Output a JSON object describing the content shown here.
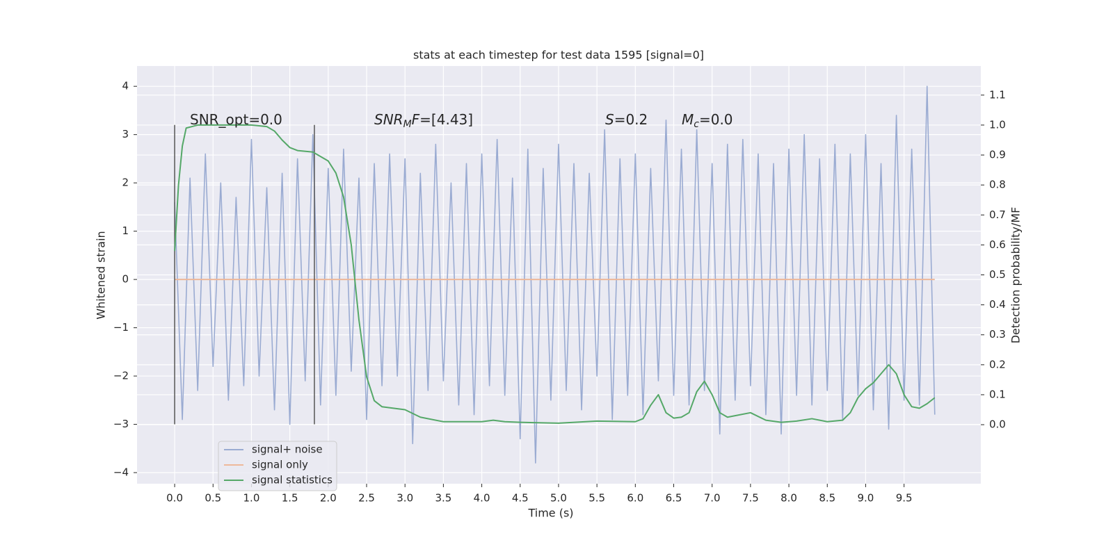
{
  "chart_data": {
    "type": "line",
    "title": "stats at each timestep for test data 1595 [signal=0]",
    "xlabel": "Time (s)",
    "ylabel": "Whitened strain",
    "y2label": "Detection probability/MF",
    "xlim": [
      -0.49,
      10.5
    ],
    "ylim": [
      -4.23,
      4.42
    ],
    "y2lim": [
      -0.197,
      1.197
    ],
    "xticks": [
      {
        "value": 0,
        "label": "0.0"
      },
      0.5,
      {
        "value": 1,
        "label": "1.0"
      },
      1.5,
      {
        "value": 2,
        "label": "2.0"
      },
      2.5,
      {
        "value": 3,
        "label": "3.0"
      },
      3.5,
      {
        "value": 4,
        "label": "4.0"
      },
      4.5,
      {
        "value": 5,
        "label": "5.0"
      },
      5.5,
      {
        "value": 6,
        "label": "6.0"
      },
      6.5,
      {
        "value": 7,
        "label": "7.0"
      },
      7.5,
      {
        "value": 8,
        "label": "8.0"
      },
      8.5,
      {
        "value": 9,
        "label": "9.0"
      },
      9.5
    ],
    "yticks": [
      {
        "value": -4,
        "label": "−4"
      },
      {
        "value": -3,
        "label": "−3"
      },
      {
        "value": -2,
        "label": "−2"
      },
      {
        "value": -1,
        "label": "−1"
      },
      0,
      1,
      2,
      3,
      4
    ],
    "y2ticks": [
      {
        "value": 0,
        "label": "0.0"
      },
      0.1,
      0.2,
      0.3,
      0.4,
      0.5,
      0.6,
      0.7,
      0.8,
      0.9,
      {
        "value": 1,
        "label": "1.0"
      },
      1.1
    ],
    "grid": true,
    "legend": "lower left",
    "series": [
      {
        "name": "signal+ noise",
        "color": "#9aabd2",
        "x": [
          0,
          0.1,
          0.2,
          0.3,
          0.4,
          0.5,
          0.6,
          0.7,
          0.8,
          0.9,
          1,
          1.1,
          1.2,
          1.3,
          1.4,
          1.5,
          1.6,
          1.7,
          1.8,
          1.9,
          2,
          2.1,
          2.2,
          2.3,
          2.4,
          2.5,
          2.6,
          2.7,
          2.8,
          2.9,
          3,
          3.1,
          3.2,
          3.3,
          3.4,
          3.5,
          3.6,
          3.7,
          3.8,
          3.9,
          4,
          4.1,
          4.2,
          4.3,
          4.4,
          4.5,
          4.6,
          4.7,
          4.8,
          4.9,
          5,
          5.1,
          5.2,
          5.3,
          5.4,
          5.5,
          5.6,
          5.7,
          5.8,
          5.9,
          6,
          6.1,
          6.2,
          6.3,
          6.4,
          6.5,
          6.6,
          6.7,
          6.8,
          6.9,
          7,
          7.1,
          7.2,
          7.3,
          7.4,
          7.5,
          7.6,
          7.7,
          7.8,
          7.9,
          8,
          8.1,
          8.2,
          8.3,
          8.4,
          8.5,
          8.6,
          8.7,
          8.8,
          8.9,
          9,
          9.1,
          9.2,
          9.3,
          9.4,
          9.5,
          9.6,
          9.7,
          9.8,
          9.9
        ],
        "values": [
          1.6,
          -2.9,
          2.1,
          -2.3,
          2.6,
          -1.8,
          2.0,
          -2.5,
          1.7,
          -2.2,
          2.9,
          -2.0,
          1.9,
          -2.7,
          2.2,
          -3.0,
          2.5,
          -2.1,
          3.0,
          -2.6,
          2.3,
          -2.4,
          2.7,
          -1.9,
          2.1,
          -2.9,
          2.4,
          -2.2,
          2.6,
          -2.0,
          2.5,
          -3.4,
          2.2,
          -2.3,
          2.8,
          -2.1,
          2.0,
          -2.6,
          2.4,
          -2.8,
          2.6,
          -2.2,
          2.9,
          -2.4,
          2.1,
          -3.3,
          2.7,
          -3.8,
          2.3,
          -2.5,
          2.8,
          -2.3,
          2.4,
          -2.7,
          2.2,
          -2.0,
          3.1,
          -2.9,
          2.5,
          -2.4,
          2.6,
          -2.8,
          2.3,
          -2.1,
          3.3,
          -2.4,
          2.7,
          -2.6,
          3.1,
          -2.3,
          2.4,
          -3.2,
          2.8,
          -2.5,
          2.9,
          -2.2,
          2.6,
          -2.8,
          2.4,
          -3.2,
          2.7,
          -2.4,
          3.0,
          -2.6,
          2.5,
          -2.3,
          2.8,
          -2.9,
          2.6,
          -2.4,
          3.0,
          -2.7,
          2.4,
          -3.1,
          3.4,
          -2.5,
          2.7,
          -2.6,
          4.0,
          -2.8
        ]
      },
      {
        "name": "signal only",
        "color": "#eeb89a",
        "x": [
          0,
          9.9
        ],
        "values": [
          0,
          0
        ]
      },
      {
        "name": "signal statistics",
        "color": "#55a868",
        "axis": "y2",
        "x": [
          0,
          0.05,
          0.1,
          0.15,
          0.3,
          0.5,
          1.0,
          1.2,
          1.3,
          1.4,
          1.5,
          1.6,
          1.8,
          2.0,
          2.1,
          2.2,
          2.3,
          2.4,
          2.5,
          2.6,
          2.7,
          3.0,
          3.2,
          3.5,
          4.0,
          4.15,
          4.3,
          4.5,
          5.0,
          5.5,
          6.0,
          6.1,
          6.2,
          6.3,
          6.4,
          6.5,
          6.6,
          6.7,
          6.8,
          6.9,
          7.0,
          7.1,
          7.2,
          7.3,
          7.5,
          7.7,
          7.9,
          8.1,
          8.3,
          8.5,
          8.7,
          8.8,
          8.9,
          9.0,
          9.1,
          9.2,
          9.3,
          9.4,
          9.5,
          9.6,
          9.7,
          9.8,
          9.9
        ],
        "values": [
          0.58,
          0.8,
          0.93,
          0.99,
          1.0,
          1.0,
          1.0,
          0.995,
          0.98,
          0.95,
          0.925,
          0.915,
          0.91,
          0.88,
          0.84,
          0.76,
          0.6,
          0.35,
          0.16,
          0.08,
          0.06,
          0.05,
          0.025,
          0.01,
          0.01,
          0.015,
          0.01,
          0.008,
          0.005,
          0.012,
          0.01,
          0.02,
          0.065,
          0.1,
          0.04,
          0.022,
          0.025,
          0.04,
          0.11,
          0.145,
          0.1,
          0.04,
          0.025,
          0.03,
          0.04,
          0.015,
          0.008,
          0.012,
          0.02,
          0.01,
          0.015,
          0.04,
          0.09,
          0.12,
          0.14,
          0.17,
          0.2,
          0.17,
          0.1,
          0.06,
          0.055,
          0.07,
          0.09
        ]
      }
    ],
    "vlines": [
      0,
      1.82
    ],
    "vline_range": [
      -3,
      3.2
    ],
    "annotations": [
      [
        {
          "t": "SNR_opt=0.0",
          "style": "rm"
        }
      ],
      [
        {
          "t": "SNR",
          "style": "it"
        },
        {
          "t": "M",
          "style": "sub"
        },
        {
          "t": "F",
          "style": "it"
        },
        {
          "t": "=[4.43]",
          "style": "rm"
        }
      ],
      [
        {
          "t": "S",
          "style": "it"
        },
        {
          "t": "=0.2",
          "style": "rm"
        }
      ],
      [
        {
          "t": "M",
          "style": "it"
        },
        {
          "t": "c",
          "style": "sub"
        },
        {
          "t": "=0.0",
          "style": "rm"
        }
      ]
    ]
  }
}
